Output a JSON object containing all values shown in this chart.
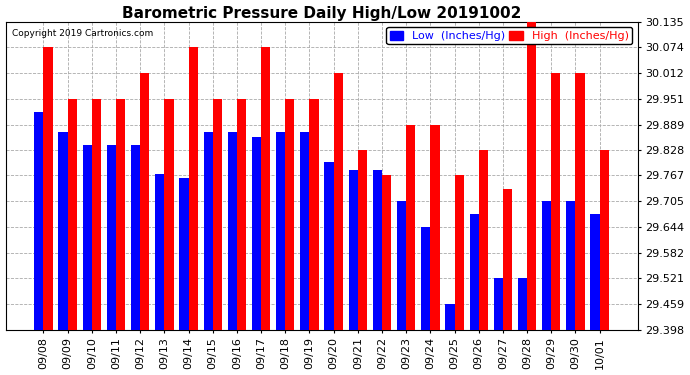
{
  "title": "Barometric Pressure Daily High/Low 20191002",
  "copyright": "Copyright 2019 Cartronics.com",
  "legend_low": "Low  (Inches/Hg)",
  "legend_high": "High  (Inches/Hg)",
  "low_color": "#0000ff",
  "high_color": "#ff0000",
  "background_color": "#ffffff",
  "ylim_min": 29.398,
  "ylim_max": 30.135,
  "yticks": [
    29.398,
    29.459,
    29.521,
    29.582,
    29.644,
    29.705,
    29.767,
    29.828,
    29.889,
    29.951,
    30.012,
    30.074,
    30.135
  ],
  "dates": [
    "09/08",
    "09/09",
    "09/10",
    "09/11",
    "09/12",
    "09/13",
    "09/14",
    "09/15",
    "09/16",
    "09/17",
    "09/18",
    "09/19",
    "09/20",
    "09/21",
    "09/22",
    "09/23",
    "09/24",
    "09/25",
    "09/26",
    "09/27",
    "09/28",
    "09/29",
    "09/30",
    "10/01"
  ],
  "low_values": [
    29.92,
    29.87,
    29.84,
    29.84,
    29.84,
    29.77,
    29.76,
    29.87,
    29.87,
    29.86,
    29.87,
    29.87,
    29.8,
    29.78,
    29.78,
    29.705,
    29.644,
    29.459,
    29.675,
    29.521,
    29.521,
    29.705,
    29.705,
    29.675
  ],
  "high_values": [
    30.074,
    29.951,
    29.951,
    29.951,
    30.012,
    29.951,
    30.074,
    29.951,
    29.951,
    30.074,
    29.951,
    29.951,
    30.012,
    29.828,
    29.767,
    29.889,
    29.889,
    29.767,
    29.828,
    29.735,
    30.135,
    30.012,
    30.012,
    29.828
  ],
  "grid_color": "#aaaaaa",
  "title_fontsize": 11,
  "tick_fontsize": 8,
  "legend_fontsize": 8,
  "bar_width": 0.38
}
